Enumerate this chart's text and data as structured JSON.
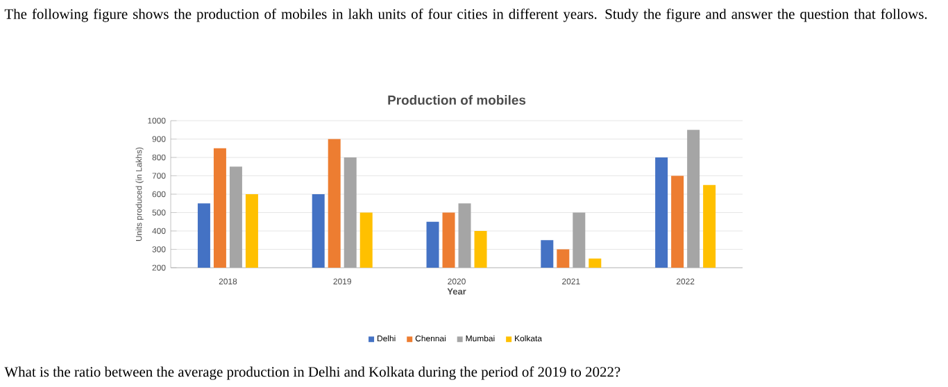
{
  "chart_data": {
    "type": "bar",
    "title": "Production of mobiles",
    "xlabel": "Year",
    "ylabel": "Units produced (in Lakhs)",
    "categories": [
      "2018",
      "2019",
      "2020",
      "2021",
      "2022"
    ],
    "series": [
      {
        "name": "Delhi",
        "color": "#4472c4",
        "values": [
          550,
          600,
          450,
          350,
          800
        ]
      },
      {
        "name": "Chennai",
        "color": "#ed7d31",
        "values": [
          850,
          900,
          500,
          300,
          700
        ]
      },
      {
        "name": "Mumbai",
        "color": "#a5a5a5",
        "values": [
          750,
          800,
          550,
          500,
          950
        ]
      },
      {
        "name": "Kolkata",
        "color": "#ffc000",
        "values": [
          600,
          500,
          400,
          250,
          650
        ]
      }
    ],
    "ylim": [
      200,
      1000
    ],
    "yticks": [
      200,
      300,
      400,
      500,
      600,
      700,
      800,
      900,
      1000
    ],
    "grid": "y",
    "legend": "bottom",
    "annotations": [
      "The following figure shows the production of mobiles in lakh units of four cities in different years. Study the figure and answer the question that follows.",
      "What is the ratio between the average production in Delhi and Kolkata during the period of 2019 to 2022?"
    ]
  }
}
